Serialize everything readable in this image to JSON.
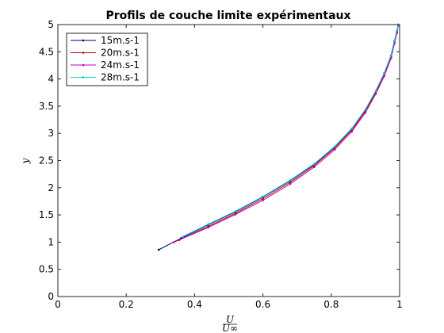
{
  "chart_data": {
    "type": "line",
    "title": "Profils de couche limite expérimentaux",
    "xlabel_num": "U",
    "xlabel_den": "U∞",
    "ylabel": "y",
    "xlim": [
      0,
      1
    ],
    "ylim": [
      0,
      5
    ],
    "xticks": [
      0,
      0.2,
      0.4,
      0.6,
      0.8,
      1
    ],
    "xtick_labels": [
      "0",
      "0.2",
      "0.4",
      "0.6",
      "0.8",
      "1"
    ],
    "yticks": [
      0,
      0.5,
      1,
      1.5,
      2,
      2.5,
      3,
      3.5,
      4,
      4.5,
      5
    ],
    "ytick_labels": [
      "0",
      "0.5",
      "1",
      "1.5",
      "2",
      "2.5",
      "3",
      "3.5",
      "4",
      "4.5",
      "5"
    ],
    "grid": false,
    "legend_position": "top-left",
    "series": [
      {
        "name": "15m.s-1",
        "color": "#00007f",
        "x": [
          0.295,
          0.36,
          0.44,
          0.52,
          0.6,
          0.68,
          0.75,
          0.81,
          0.86,
          0.9,
          0.93,
          0.955,
          0.975,
          0.985,
          0.992,
          0.996
        ],
        "y": [
          0.86,
          1.07,
          1.32,
          1.56,
          1.83,
          2.13,
          2.43,
          2.75,
          3.08,
          3.43,
          3.77,
          4.1,
          4.43,
          4.7,
          4.88,
          5.0
        ]
      },
      {
        "name": "20m.s-1",
        "color": "#c00000",
        "x": [
          0.355,
          0.44,
          0.52,
          0.6,
          0.68,
          0.75,
          0.81,
          0.86,
          0.9,
          0.93,
          0.955,
          0.975,
          0.985,
          0.992,
          0.996
        ],
        "y": [
          1.04,
          1.29,
          1.53,
          1.8,
          2.1,
          2.41,
          2.73,
          3.06,
          3.41,
          3.75,
          4.08,
          4.41,
          4.68,
          4.86,
          5.0
        ]
      },
      {
        "name": "24m.s-1",
        "color": "#bf00bf",
        "x": [
          0.34,
          0.44,
          0.52,
          0.6,
          0.68,
          0.75,
          0.81,
          0.86,
          0.9,
          0.93,
          0.955,
          0.975,
          0.985,
          0.992,
          0.996
        ],
        "y": [
          1.0,
          1.27,
          1.51,
          1.77,
          2.07,
          2.38,
          2.7,
          3.03,
          3.38,
          3.72,
          4.05,
          4.38,
          4.65,
          4.84,
          4.98
        ]
      },
      {
        "name": "28m.s-1",
        "color": "#00d0d0",
        "x": [
          0.365,
          0.44,
          0.52,
          0.6,
          0.68,
          0.75,
          0.81,
          0.86,
          0.9,
          0.93,
          0.955,
          0.975,
          0.985,
          0.992,
          0.996
        ],
        "y": [
          1.1,
          1.33,
          1.57,
          1.84,
          2.14,
          2.44,
          2.76,
          3.09,
          3.44,
          3.78,
          4.11,
          4.44,
          4.71,
          4.89,
          5.0
        ]
      }
    ]
  }
}
